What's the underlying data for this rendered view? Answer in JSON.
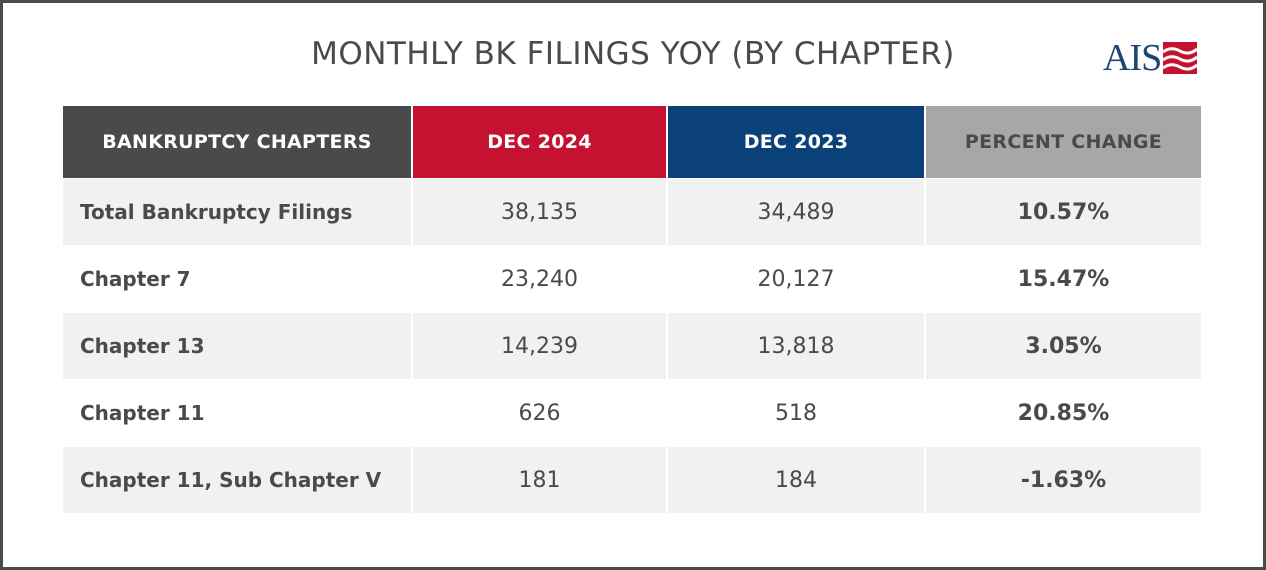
{
  "title": "MONTHLY BK FILINGS YOY (BY CHAPTER)",
  "logo": {
    "text": "AIS",
    "colors": {
      "blue": "#1d4474",
      "red": "#c41230"
    }
  },
  "colors": {
    "chapters_header": "#4a4a4d",
    "dec2024_header": "#c41230",
    "dec2023_header": "#0b4179",
    "percent_header": "#a7a7a7"
  },
  "table": {
    "headers": [
      "BANKRUPTCY CHAPTERS",
      "DEC 2024",
      "DEC 2023",
      "PERCENT CHANGE"
    ],
    "rows": [
      {
        "chapter": "Total Bankruptcy Filings",
        "dec_2024": "38,135",
        "dec_2023": "34,489",
        "percent_change": "10.57%"
      },
      {
        "chapter": "Chapter 7",
        "dec_2024": "23,240",
        "dec_2023": "20,127",
        "percent_change": "15.47%"
      },
      {
        "chapter": "Chapter 13",
        "dec_2024": "14,239",
        "dec_2023": "13,818",
        "percent_change": "3.05%"
      },
      {
        "chapter": "Chapter 11",
        "dec_2024": "626",
        "dec_2023": "518",
        "percent_change": "20.85%"
      },
      {
        "chapter": "Chapter 11, Sub Chapter V",
        "dec_2024": "181",
        "dec_2023": "184",
        "percent_change": "-1.63%"
      }
    ]
  }
}
